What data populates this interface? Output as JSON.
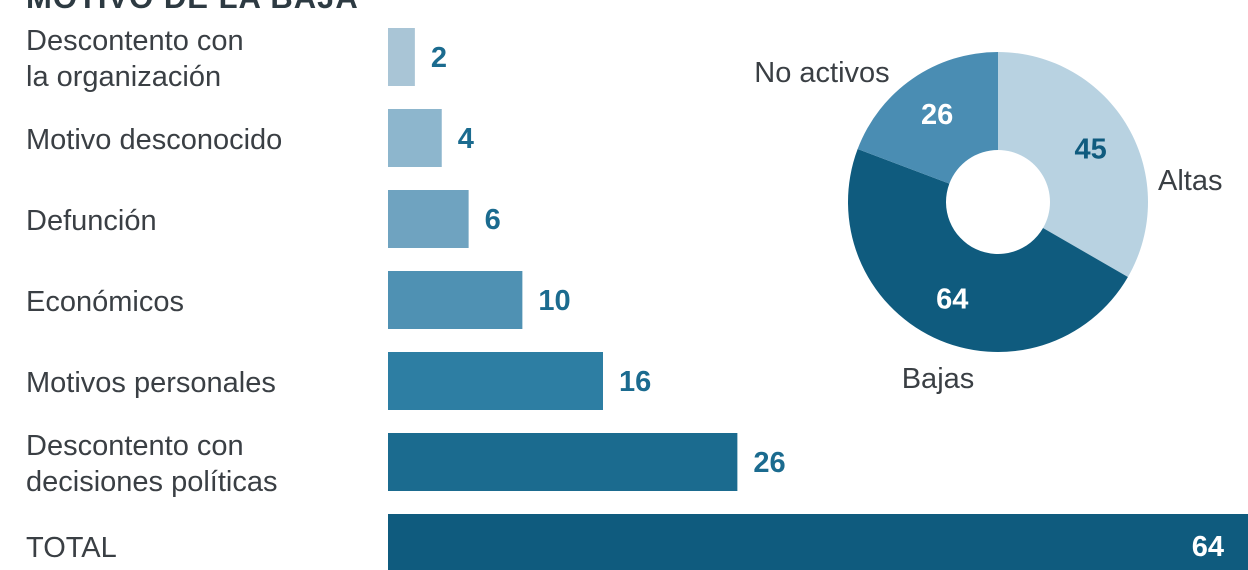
{
  "header": {
    "title": "MOTIVO DE LA BAJA"
  },
  "chart_data": [
    {
      "type": "bar",
      "orientation": "horizontal",
      "title": "MOTIVO DE LA BAJA",
      "categories": [
        "Descontento con la organización",
        "Motivo desconocido",
        "Defunción",
        "Económicos",
        "Motivos personales",
        "Descontento con decisiones políticas",
        "TOTAL"
      ],
      "category_lines": [
        [
          "Descontento con",
          "la organización"
        ],
        [
          "Motivo desconocido"
        ],
        [
          "Defunción"
        ],
        [
          "Económicos"
        ],
        [
          "Motivos personales"
        ],
        [
          "Descontento con",
          "decisiones políticas"
        ],
        [
          "TOTAL"
        ]
      ],
      "values": [
        2,
        4,
        6,
        10,
        16,
        26,
        64
      ],
      "value_labels": [
        "2",
        "4",
        "6",
        "10",
        "16",
        "26",
        "64"
      ],
      "colors": [
        "#a9c5d6",
        "#8db6cd",
        "#6fa3c0",
        "#4f91b3",
        "#2d7ea3",
        "#1b6b8f",
        "#0f5b7e"
      ],
      "xlim": [
        0,
        64
      ],
      "grid": false,
      "legend": "none"
    },
    {
      "type": "pie",
      "style": "donut",
      "categories": [
        "Altas",
        "Bajas",
        "No activos"
      ],
      "values": [
        45,
        64,
        26
      ],
      "value_labels": [
        "45",
        "64",
        "26"
      ],
      "colors": [
        "#b8d2e1",
        "#0f5b7e",
        "#4a8db3"
      ],
      "value_label_colors": [
        "#0f5b7e",
        "#ffffff",
        "#ffffff"
      ]
    }
  ]
}
